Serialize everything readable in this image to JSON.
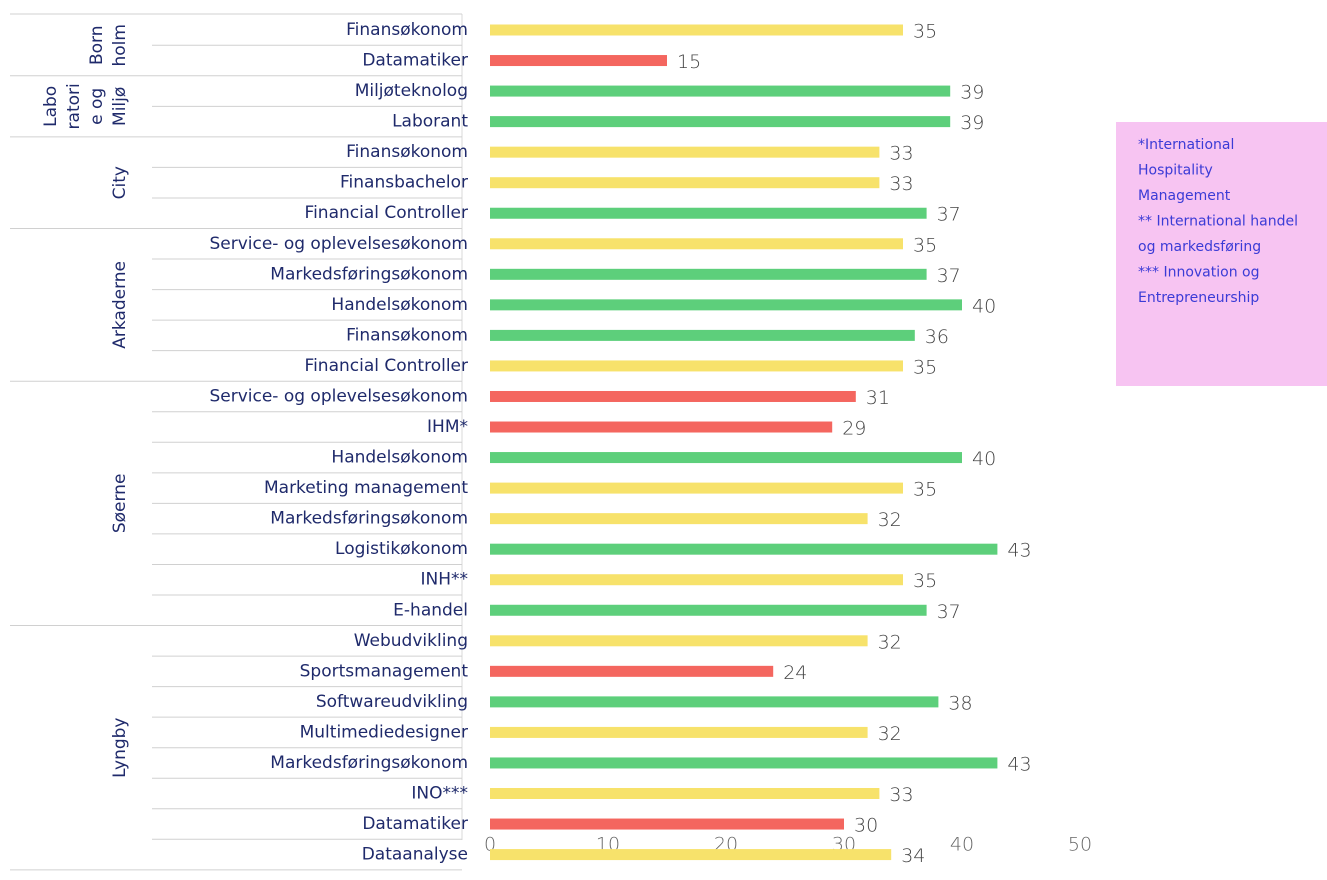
{
  "chart_data": {
    "type": "bar",
    "orientation": "horizontal",
    "xlim": [
      0,
      50
    ],
    "xticks": [
      0,
      10,
      20,
      30,
      40,
      50
    ],
    "groups": [
      {
        "label_lines": [
          "Born",
          "holm"
        ],
        "categories": [
          "Finansøkonom",
          "Datamatiker"
        ],
        "values": [
          35,
          15
        ],
        "colors": [
          "#f7e26b",
          "#f4665f"
        ]
      },
      {
        "label_lines": [
          "Labo",
          "ratori",
          "e og",
          "Miljø"
        ],
        "categories": [
          "Miljøteknolog",
          "Laborant"
        ],
        "values": [
          39,
          39
        ],
        "colors": [
          "#5dcf7b",
          "#5dcf7b"
        ]
      },
      {
        "label_lines": [
          "City"
        ],
        "categories": [
          "Finansøkonom",
          "Finansbachelor",
          "Financial Controller"
        ],
        "values": [
          33,
          33,
          37
        ],
        "colors": [
          "#f7e26b",
          "#f7e26b",
          "#5dcf7b"
        ]
      },
      {
        "label_lines": [
          "Arkaderne"
        ],
        "categories": [
          "Service- og oplevelsesøkonom",
          "Markedsføringsøkonom",
          "Handelsøkonom",
          "Finansøkonom",
          "Financial Controller"
        ],
        "values": [
          35,
          37,
          40,
          36,
          35
        ],
        "colors": [
          "#f7e26b",
          "#5dcf7b",
          "#5dcf7b",
          "#5dcf7b",
          "#f7e26b"
        ]
      },
      {
        "label_lines": [
          "Søerne"
        ],
        "categories": [
          "Service- og oplevelsesøkonom",
          "IHM*",
          "Handelsøkonom",
          "Marketing management",
          "Markedsføringsøkonom",
          "Logistikøkonom",
          "INH**",
          "E-handel"
        ],
        "values": [
          31,
          29,
          40,
          35,
          32,
          43,
          35,
          37
        ],
        "colors": [
          "#f4665f",
          "#f4665f",
          "#5dcf7b",
          "#f7e26b",
          "#f7e26b",
          "#5dcf7b",
          "#f7e26b",
          "#5dcf7b"
        ]
      },
      {
        "label_lines": [
          "Lyngby"
        ],
        "categories": [
          "Webudvikling",
          "Sportsmanagement",
          "Softwareudvikling",
          "Multimediedesigner",
          "Markedsføringsøkonom",
          "INO***",
          "Datamatiker",
          "Dataanalyse"
        ],
        "values": [
          32,
          24,
          38,
          32,
          43,
          33,
          30,
          34
        ],
        "colors": [
          "#f7e26b",
          "#f4665f",
          "#5dcf7b",
          "#f7e26b",
          "#5dcf7b",
          "#f7e26b",
          "#f4665f",
          "#f7e26b"
        ]
      }
    ],
    "annotation_lines": [
      "*International",
      "Hospitality",
      "Management",
      "** International handel",
      "og markedsføring",
      "*** Innovation og",
      "Entrepreneurship"
    ]
  }
}
